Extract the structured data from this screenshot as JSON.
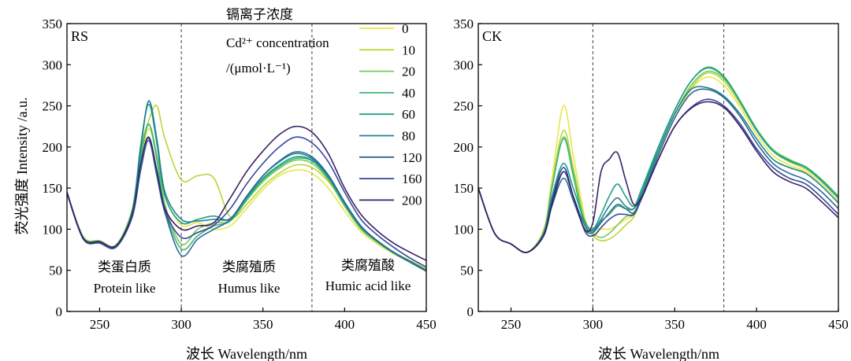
{
  "legend": {
    "title_cn": "镉离子浓度",
    "title_en": "Cd²⁺ concentration",
    "title_unit": "/(μmol·L⁻¹)"
  },
  "regions": [
    {
      "cn": "类蛋白质",
      "en": "Protein like"
    },
    {
      "cn": "类腐殖质",
      "en": "Humus like"
    },
    {
      "cn": "类腐殖酸",
      "en": "Humic acid like"
    }
  ],
  "chart_data": [
    {
      "type": "line",
      "panel": "RS",
      "xlabel": "波长 Wavelength/nm",
      "ylabel": "荧光强度  Intensity /a.u.",
      "xlim": [
        230,
        450
      ],
      "ylim": [
        0,
        350
      ],
      "xticks": [
        250,
        300,
        350,
        400,
        450
      ],
      "yticks": [
        0,
        50,
        100,
        150,
        200,
        250,
        300,
        350
      ],
      "dividers": [
        300,
        380
      ],
      "x": [
        230,
        240,
        250,
        260,
        270,
        275,
        280,
        285,
        290,
        300,
        310,
        320,
        330,
        340,
        350,
        360,
        370,
        380,
        390,
        400,
        410,
        420,
        430,
        440,
        450
      ],
      "series": [
        {
          "name": "0",
          "color": "#e9e64a",
          "values": [
            145,
            90,
            85,
            80,
            120,
            180,
            222,
            190,
            140,
            105,
            108,
            100,
            104,
            125,
            148,
            165,
            172,
            168,
            150,
            122,
            97,
            82,
            70,
            60,
            50
          ]
        },
        {
          "name": "10",
          "color": "#b9d83a",
          "values": [
            145,
            91,
            86,
            81,
            125,
            195,
            232,
            250,
            210,
            160,
            165,
            162,
            115,
            130,
            152,
            168,
            178,
            175,
            158,
            130,
            100,
            85,
            72,
            62,
            52
          ]
        },
        {
          "name": "20",
          "color": "#7cc95a",
          "values": [
            144,
            90,
            85,
            80,
            122,
            186,
            227,
            190,
            130,
            82,
            100,
            108,
            110,
            135,
            158,
            174,
            184,
            180,
            160,
            128,
            100,
            84,
            71,
            60,
            50
          ]
        },
        {
          "name": "40",
          "color": "#3fb676",
          "values": [
            144,
            90,
            85,
            80,
            122,
            186,
            228,
            185,
            125,
            76,
            92,
            104,
            110,
            136,
            160,
            176,
            186,
            183,
            162,
            130,
            102,
            86,
            72,
            61,
            50
          ]
        },
        {
          "name": "60",
          "color": "#1f9e8a",
          "values": [
            144,
            89,
            84,
            79,
            123,
            200,
            252,
            205,
            140,
            108,
            112,
            116,
            112,
            138,
            162,
            178,
            188,
            184,
            163,
            131,
            102,
            85,
            71,
            60,
            49
          ]
        },
        {
          "name": "80",
          "color": "#20808f",
          "values": [
            145,
            89,
            84,
            79,
            121,
            195,
            256,
            210,
            145,
            112,
            110,
            112,
            113,
            140,
            165,
            182,
            192,
            186,
            165,
            132,
            103,
            86,
            72,
            61,
            50
          ]
        },
        {
          "name": "120",
          "color": "#2d6a96",
          "values": [
            145,
            88,
            83,
            78,
            115,
            170,
            208,
            165,
            120,
            68,
            88,
            100,
            112,
            140,
            165,
            183,
            194,
            188,
            166,
            133,
            104,
            86,
            72,
            60,
            49
          ]
        },
        {
          "name": "160",
          "color": "#35479a",
          "values": [
            144,
            88,
            84,
            79,
            118,
            178,
            211,
            170,
            122,
            90,
            96,
            105,
            125,
            155,
            180,
            200,
            212,
            205,
            182,
            145,
            112,
            93,
            78,
            65,
            54
          ]
        },
        {
          "name": "200",
          "color": "#3b2167",
          "values": [
            145,
            89,
            85,
            80,
            118,
            178,
            212,
            172,
            125,
            100,
            104,
            108,
            138,
            170,
            195,
            215,
            225,
            218,
            192,
            150,
            118,
            98,
            83,
            72,
            62
          ]
        }
      ]
    },
    {
      "type": "line",
      "panel": "CK",
      "xlabel": "波长 Wavelength/nm",
      "ylabel": "",
      "xlim": [
        230,
        450
      ],
      "ylim": [
        0,
        350
      ],
      "xticks": [
        250,
        300,
        350,
        400,
        450
      ],
      "yticks": [
        0,
        50,
        100,
        150,
        200,
        250,
        300,
        350
      ],
      "dividers": [
        300,
        380
      ],
      "x": [
        230,
        240,
        250,
        260,
        270,
        275,
        282,
        288,
        295,
        300,
        305,
        310,
        315,
        320,
        325,
        330,
        340,
        350,
        360,
        370,
        380,
        390,
        400,
        410,
        420,
        430,
        440,
        450
      ],
      "series": [
        {
          "name": "0",
          "color": "#e9e64a",
          "values": [
            150,
            95,
            82,
            72,
            100,
            160,
            250,
            190,
            115,
            92,
            100,
            100,
            105,
            112,
            118,
            140,
            190,
            235,
            270,
            285,
            275,
            248,
            215,
            190,
            178,
            170,
            155,
            135
          ]
        },
        {
          "name": "10",
          "color": "#b9d83a",
          "values": [
            150,
            95,
            82,
            72,
            98,
            155,
            220,
            175,
            110,
            92,
            86,
            88,
            95,
            105,
            115,
            140,
            195,
            240,
            272,
            290,
            280,
            252,
            220,
            195,
            182,
            173,
            158,
            138
          ]
        },
        {
          "name": "20",
          "color": "#7cc95a",
          "values": [
            150,
            95,
            82,
            72,
            98,
            150,
            212,
            170,
            108,
            95,
            90,
            95,
            105,
            115,
            120,
            142,
            195,
            240,
            275,
            292,
            283,
            255,
            222,
            197,
            185,
            175,
            160,
            140
          ]
        },
        {
          "name": "40",
          "color": "#3fb676",
          "values": [
            150,
            95,
            82,
            72,
            96,
            150,
            210,
            165,
            105,
            100,
            110,
            118,
            128,
            125,
            125,
            145,
            200,
            245,
            280,
            297,
            286,
            256,
            222,
            196,
            184,
            176,
            160,
            140
          ]
        },
        {
          "name": "60",
          "color": "#1f9e8a",
          "values": [
            150,
            95,
            82,
            72,
            94,
            140,
            180,
            150,
            110,
            100,
            118,
            140,
            155,
            140,
            128,
            150,
            200,
            245,
            280,
            296,
            285,
            255,
            220,
            195,
            183,
            175,
            158,
            138
          ]
        },
        {
          "name": "80",
          "color": "#20808f",
          "values": [
            150,
            95,
            82,
            72,
            92,
            130,
            170,
            140,
            105,
            98,
            112,
            128,
            138,
            128,
            125,
            145,
            195,
            240,
            270,
            272,
            262,
            240,
            210,
            185,
            175,
            168,
            152,
            132
          ]
        },
        {
          "name": "120",
          "color": "#2d6a96",
          "values": [
            150,
            95,
            82,
            72,
            92,
            128,
            162,
            135,
            100,
            96,
            108,
            120,
            130,
            125,
            120,
            140,
            190,
            235,
            265,
            270,
            260,
            237,
            205,
            180,
            168,
            160,
            145,
            125
          ]
        },
        {
          "name": "160",
          "color": "#35479a",
          "values": [
            150,
            95,
            82,
            72,
            94,
            135,
            175,
            140,
            98,
            92,
            102,
            112,
            118,
            118,
            118,
            138,
            185,
            225,
            248,
            258,
            250,
            228,
            198,
            175,
            162,
            155,
            138,
            118
          ]
        },
        {
          "name": "200",
          "color": "#3b2167",
          "values": [
            150,
            95,
            82,
            72,
            93,
            130,
            170,
            140,
            100,
            108,
            170,
            185,
            193,
            160,
            130,
            140,
            185,
            225,
            247,
            255,
            248,
            225,
            195,
            170,
            158,
            150,
            133,
            114
          ]
        }
      ]
    }
  ]
}
